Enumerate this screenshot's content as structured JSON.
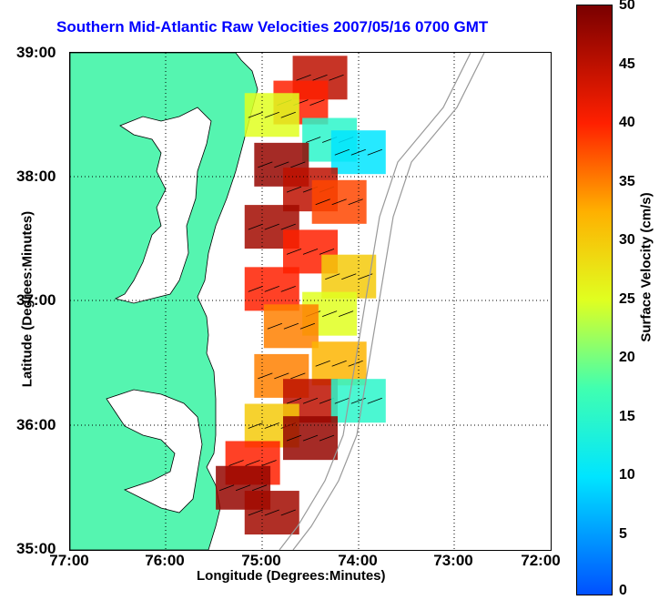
{
  "title": "Southern Mid-Atlantic Raw Velocities 2007/05/16 0700 GMT",
  "axes": {
    "xlabel": "Longitude (Degrees:Minutes)",
    "ylabel": "Latitude (Degrees:Minutes)",
    "x_ticks": [
      "77:00",
      "76:00",
      "75:00",
      "74:00",
      "73:00",
      "72:00"
    ],
    "y_ticks": [
      "39:00",
      "38:00",
      "37:00",
      "36:00",
      "35:00"
    ]
  },
  "colorbar": {
    "label": "Surface Velocity (cm/s)",
    "ticks": [
      "50",
      "45",
      "40",
      "35",
      "30",
      "25",
      "20",
      "15",
      "10",
      "5",
      "0"
    ],
    "range": [
      0,
      50
    ]
  },
  "colors": {
    "land": "#55f5b0",
    "title": "#0000ff",
    "grid": "#000000"
  },
  "chart_data": {
    "type": "heatmap",
    "title": "Southern Mid-Atlantic Raw Velocities 2007/05/16 0700 GMT",
    "xlabel": "Longitude (Degrees:Minutes)",
    "ylabel": "Latitude (Degrees:Minutes)",
    "xlim": [
      -77,
      -72
    ],
    "ylim": [
      35,
      39
    ],
    "grid": true,
    "colorbar_label": "Surface Velocity (cm/s)",
    "colorbar_range": [
      0,
      50
    ],
    "velocity_field": [
      {
        "lon": -74.4,
        "lat": 38.8,
        "speed": 45
      },
      {
        "lon": -74.6,
        "lat": 38.6,
        "speed": 40
      },
      {
        "lon": -74.9,
        "lat": 38.5,
        "speed": 25
      },
      {
        "lon": -74.3,
        "lat": 38.3,
        "speed": 15
      },
      {
        "lon": -74.0,
        "lat": 38.2,
        "speed": 10
      },
      {
        "lon": -74.8,
        "lat": 38.1,
        "speed": 48
      },
      {
        "lon": -74.5,
        "lat": 37.9,
        "speed": 45
      },
      {
        "lon": -74.2,
        "lat": 37.8,
        "speed": 38
      },
      {
        "lon": -74.9,
        "lat": 37.6,
        "speed": 47
      },
      {
        "lon": -74.5,
        "lat": 37.4,
        "speed": 40
      },
      {
        "lon": -74.1,
        "lat": 37.2,
        "speed": 30
      },
      {
        "lon": -74.9,
        "lat": 37.1,
        "speed": 40
      },
      {
        "lon": -74.3,
        "lat": 36.9,
        "speed": 25
      },
      {
        "lon": -74.7,
        "lat": 36.8,
        "speed": 35
      },
      {
        "lon": -74.2,
        "lat": 36.5,
        "speed": 32
      },
      {
        "lon": -74.8,
        "lat": 36.4,
        "speed": 35
      },
      {
        "lon": -74.5,
        "lat": 36.2,
        "speed": 45
      },
      {
        "lon": -74.0,
        "lat": 36.2,
        "speed": 15
      },
      {
        "lon": -74.9,
        "lat": 36.0,
        "speed": 30
      },
      {
        "lon": -74.5,
        "lat": 35.9,
        "speed": 48
      },
      {
        "lon": -75.1,
        "lat": 35.7,
        "speed": 40
      },
      {
        "lon": -75.2,
        "lat": 35.5,
        "speed": 48
      },
      {
        "lon": -74.9,
        "lat": 35.3,
        "speed": 47
      }
    ]
  }
}
